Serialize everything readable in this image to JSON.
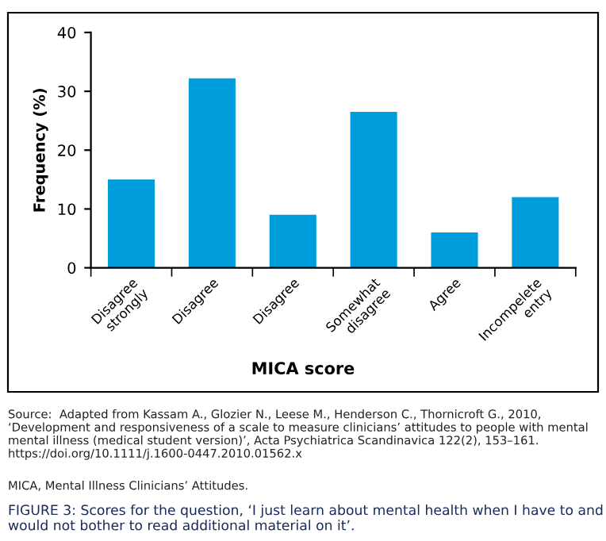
{
  "chart_data": {
    "type": "bar",
    "categories": [
      "Disagree\nstrongly",
      "Disagree",
      "Disagree",
      "Somewhat\ndisagree",
      "Agree",
      "Incompelete\nentry"
    ],
    "values": [
      15,
      32.2,
      9,
      26.5,
      6,
      12
    ],
    "color": "#009ddc",
    "ylabel": "Frequency (%)",
    "xlabel": "MICA score",
    "ylim": [
      0,
      40
    ],
    "yticks": [
      0,
      10,
      20,
      30,
      40
    ],
    "grid": false,
    "annotations": [
      "Source:  Adapted from Kassam A., Glozier N., Leese M., Henderson C., Thornicroft G., 2010, ‘Development and responsiveness of a scale to measure clinicians’ attitudes to people with mental mental illness (medical student version)’, Acta Psychiatrica Scandinavica 122(2), 153–161. https://doi.org/10.1111/j.1600-0447.2010.01562.x",
      "MICA, Mental Illness Clinicians’ Attitudes.",
      "FIGURE 3: Scores for the question, ‘I just learn about mental health when I have to and would not bother to read additional material on it’."
    ]
  }
}
